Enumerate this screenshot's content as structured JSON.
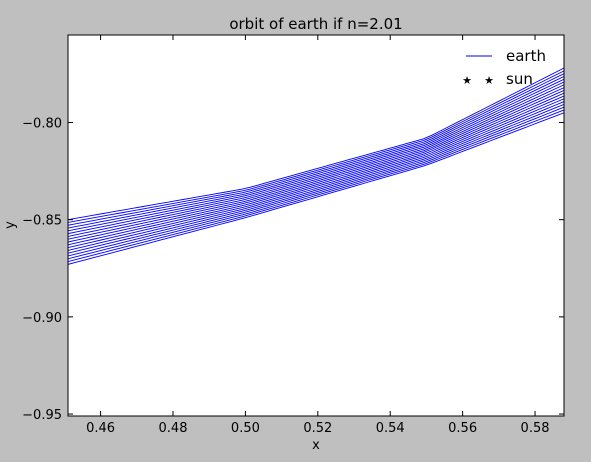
{
  "chart_data": {
    "type": "line",
    "title": "orbit of earth if n=2.01",
    "xlabel": "x",
    "ylabel": "y",
    "xlim": [
      0.451,
      0.588
    ],
    "ylim": [
      -0.951,
      -0.755
    ],
    "x_ticks": [
      0.46,
      0.48,
      0.5,
      0.52,
      0.54,
      0.56,
      0.58
    ],
    "x_tick_labels": [
      "0.46",
      "0.48",
      "0.50",
      "0.52",
      "0.54",
      "0.56",
      "0.58"
    ],
    "y_ticks": [
      -0.8,
      -0.85,
      -0.9,
      -0.95
    ],
    "y_tick_labels": [
      "−0.80",
      "−0.85",
      "−0.90",
      "−0.95"
    ],
    "grid": false,
    "legend_position": "top-right",
    "series": [
      {
        "name": "earth",
        "color": "#0000ff",
        "marker": "line",
        "orbit_band": {
          "upper_edge": [
            [
              0.451,
              -0.85
            ],
            [
              0.5,
              -0.834
            ],
            [
              0.55,
              -0.808
            ],
            [
              0.588,
              -0.772
            ]
          ],
          "lower_edge": [
            [
              0.451,
              -0.873
            ],
            [
              0.5,
              -0.849
            ],
            [
              0.55,
              -0.822
            ],
            [
              0.588,
              -0.795
            ]
          ],
          "passes": 17
        }
      },
      {
        "name": "sun",
        "color": "#000000",
        "marker": "star",
        "points": []
      }
    ]
  }
}
